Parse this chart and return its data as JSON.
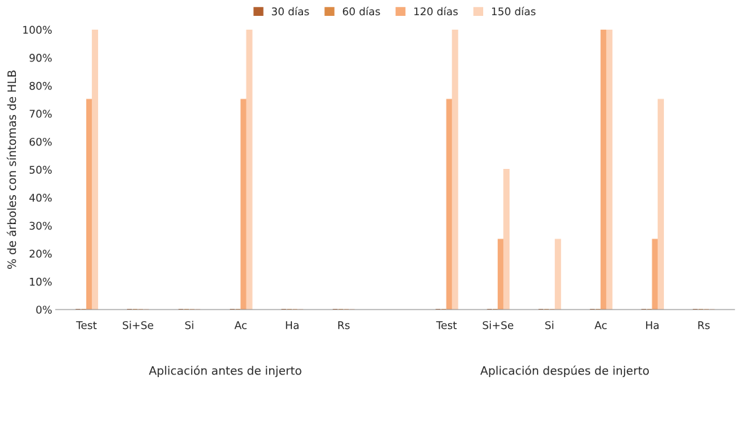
{
  "chart_data": {
    "type": "bar",
    "ylabel": "% de árboles con síntomas de HLB",
    "categories": [
      "Test",
      "Si+Se",
      "Si",
      "Ac",
      "Ha",
      "Rs",
      null,
      "Test",
      "Si+Se",
      "Si",
      "Ac",
      "Ha",
      "Rs"
    ],
    "series": [
      {
        "name": "30 días",
        "color": "#b3602e",
        "values": [
          0,
          0,
          0,
          0,
          0,
          0,
          null,
          0,
          0,
          0,
          0,
          0,
          0
        ]
      },
      {
        "name": "60 días",
        "color": "#dc8a45",
        "values": [
          0,
          0,
          0,
          0,
          0,
          0,
          null,
          0,
          0,
          0,
          0,
          0,
          0
        ]
      },
      {
        "name": "120 días",
        "color": "#f7ab78",
        "values": [
          75,
          0,
          0,
          75,
          0,
          0,
          null,
          75,
          25,
          0,
          100,
          25,
          0
        ]
      },
      {
        "name": "150 días",
        "color": "#fcd3b8",
        "values": [
          100,
          0,
          0,
          100,
          0,
          0,
          null,
          100,
          50,
          25,
          100,
          75,
          0
        ]
      }
    ],
    "ylim": [
      0,
      100
    ],
    "yticks": [
      {
        "value": 0,
        "label": "0%"
      },
      {
        "value": 10,
        "label": "10%"
      },
      {
        "value": 20,
        "label": "20%"
      },
      {
        "value": 30,
        "label": "30%"
      },
      {
        "value": 40,
        "label": "40%"
      },
      {
        "value": 50,
        "label": "50%"
      },
      {
        "value": 60,
        "label": "60%"
      },
      {
        "value": 70,
        "label": "70%"
      },
      {
        "value": 80,
        "label": "80%"
      },
      {
        "value": 90,
        "label": "90%"
      },
      {
        "value": 100,
        "label": "100%"
      }
    ],
    "annotations": [
      "Aplicación antes de injerto",
      "Aplicación despúes de injerto"
    ],
    "legend": "top",
    "grid": false
  }
}
